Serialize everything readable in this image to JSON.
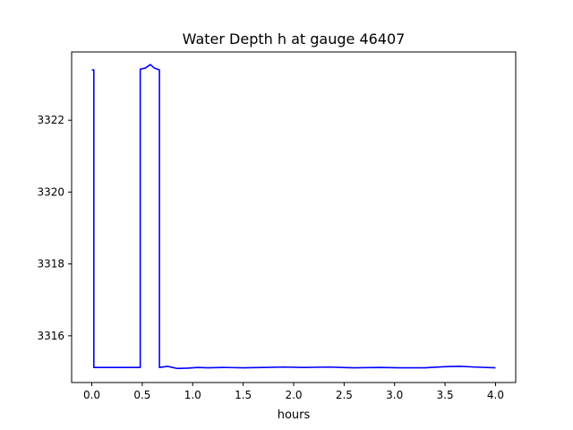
{
  "chart_data": {
    "type": "line",
    "title": "Water Depth h at gauge 46407",
    "xlabel": "hours",
    "ylabel": "",
    "xlim": [
      -0.2,
      4.2
    ],
    "ylim": [
      3314.7,
      3323.9
    ],
    "xticks": [
      0.0,
      0.5,
      1.0,
      1.5,
      2.0,
      2.5,
      3.0,
      3.5,
      4.0
    ],
    "xtick_labels": [
      "0.0",
      "0.5",
      "1.0",
      "1.5",
      "2.0",
      "2.5",
      "3.0",
      "3.5",
      "4.0"
    ],
    "yticks": [
      3316,
      3318,
      3320,
      3322
    ],
    "ytick_labels": [
      "3316",
      "3318",
      "3320",
      "3322"
    ],
    "grid": false,
    "series": [
      {
        "color": "#0000ff",
        "x": [
          0.0,
          0.02,
          0.02,
          0.1,
          0.2,
          0.3,
          0.4,
          0.48,
          0.48,
          0.53,
          0.58,
          0.62,
          0.67,
          0.67,
          0.75,
          0.85,
          0.95,
          1.05,
          1.15,
          1.3,
          1.5,
          1.7,
          1.9,
          2.1,
          2.35,
          2.6,
          2.85,
          3.05,
          3.3,
          3.5,
          3.65,
          3.8,
          4.0
        ],
        "y": [
          3323.4,
          3323.4,
          3315.12,
          3315.12,
          3315.12,
          3315.12,
          3315.12,
          3315.12,
          3323.42,
          3323.45,
          3323.55,
          3323.45,
          3323.4,
          3315.12,
          3315.15,
          3315.09,
          3315.1,
          3315.12,
          3315.11,
          3315.12,
          3315.11,
          3315.12,
          3315.13,
          3315.12,
          3315.13,
          3315.11,
          3315.12,
          3315.11,
          3315.11,
          3315.14,
          3315.15,
          3315.13,
          3315.11
        ]
      }
    ]
  }
}
